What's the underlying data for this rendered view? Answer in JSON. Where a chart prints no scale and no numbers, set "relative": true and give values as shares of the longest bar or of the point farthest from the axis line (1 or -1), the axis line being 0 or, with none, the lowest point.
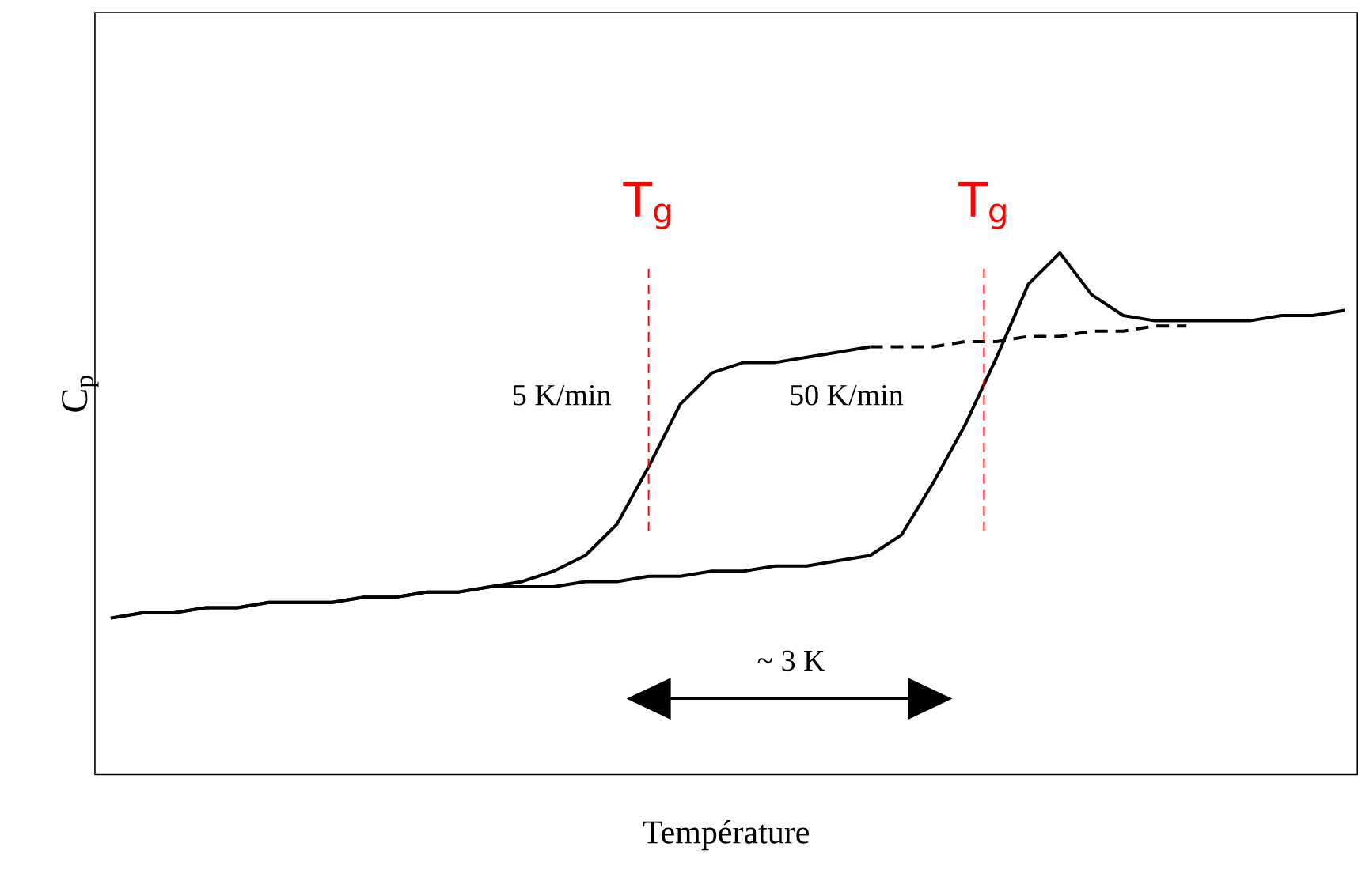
{
  "chart_data": {
    "type": "line",
    "relative": true,
    "xlabel": "Température",
    "ylabel": "C$_{p}$",
    "categories": [
      null,
      null,
      null,
      null,
      null,
      null,
      null,
      null,
      null,
      null,
      null,
      null,
      null,
      null,
      null,
      null,
      null,
      null,
      null,
      null,
      null,
      null,
      null,
      null,
      null,
      null,
      null,
      null,
      null,
      null,
      null,
      null,
      null,
      null,
      null,
      null,
      null,
      null,
      null,
      null
    ],
    "series": [
      {
        "color": "#000000",
        "values": [
          0.3,
          0.31,
          0.31,
          0.32,
          0.32,
          0.33,
          0.33,
          0.33,
          0.34,
          0.34,
          0.35,
          0.35,
          0.36,
          0.37,
          0.39,
          0.42,
          0.48,
          0.59,
          0.71,
          0.77,
          0.79,
          0.79,
          0.8,
          0.81,
          0.82,
          null,
          null,
          null,
          null,
          null,
          null,
          null,
          null,
          null,
          null,
          null,
          null,
          null,
          null,
          null
        ]
      },
      {
        "color": "#000000",
        "line_style": "dashed",
        "values": [
          null,
          null,
          null,
          null,
          null,
          null,
          null,
          null,
          null,
          null,
          null,
          null,
          null,
          null,
          null,
          null,
          null,
          null,
          null,
          null,
          null,
          null,
          null,
          null,
          0.82,
          0.82,
          0.82,
          0.83,
          0.83,
          0.84,
          0.84,
          0.85,
          0.85,
          0.86,
          0.86,
          null,
          null,
          null,
          null,
          null
        ]
      },
      {
        "color": "#000000",
        "values": [
          0.3,
          0.31,
          0.31,
          0.32,
          0.32,
          0.33,
          0.33,
          0.33,
          0.34,
          0.34,
          0.35,
          0.35,
          0.36,
          0.36,
          0.36,
          0.37,
          0.37,
          0.38,
          0.38,
          0.39,
          0.39,
          0.4,
          0.4,
          0.41,
          0.42,
          0.46,
          0.56,
          0.67,
          0.8,
          0.94,
          1.0,
          0.92,
          0.88,
          0.87,
          0.87,
          0.87,
          0.87,
          0.88,
          0.88,
          0.89
        ]
      }
    ],
    "annotations": [
      "T$_{g}$",
      "T$_{g}$",
      "5 K/min",
      "50 K/min",
      "~ 3 K"
    ]
  }
}
